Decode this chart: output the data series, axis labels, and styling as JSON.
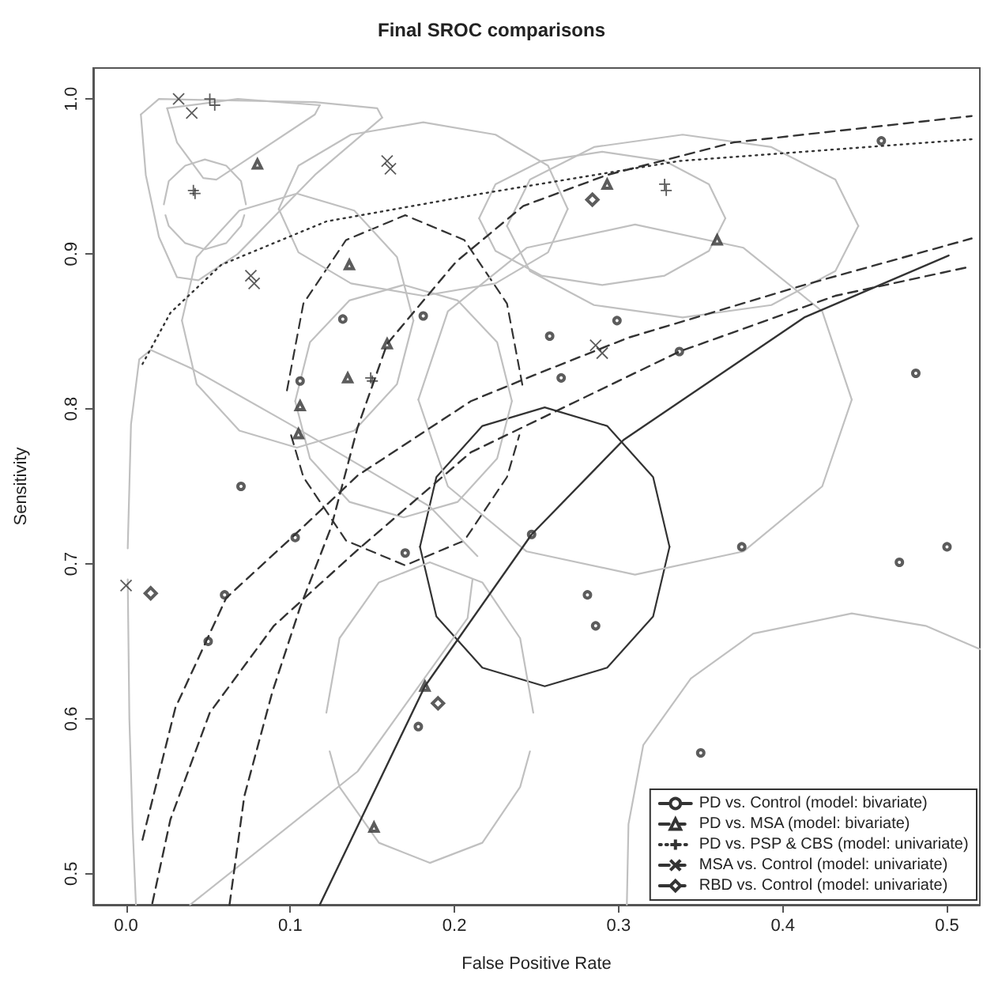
{
  "chart_data": {
    "type": "line",
    "title": "Final SROC comparisons",
    "xlabel": "False Positive Rate",
    "ylabel": "Sensitivity",
    "xlim": [
      -0.02,
      0.52
    ],
    "ylim": [
      0.48,
      1.02
    ],
    "xticks": [
      {
        "value": 0,
        "label": "0.0"
      },
      0.1,
      0.2,
      0.3,
      0.4,
      0.5
    ],
    "yticks": [
      0.5,
      0.6,
      0.7,
      0.8,
      0.9,
      {
        "value": 1,
        "label": "1.0"
      }
    ],
    "grid": false,
    "legend": "bottom right",
    "series": [
      {
        "name": "PD vs. Control (model: bivariate)",
        "color": "#333333",
        "line_style": "solid",
        "x": [
          0.118,
          0.182,
          0.247,
          0.303,
          0.413,
          0.501
        ],
        "values": [
          0.48,
          0.621,
          0.719,
          0.78,
          0.859,
          0.899
        ]
      },
      {
        "name": "PD vs. MSA (model: bivariate)",
        "color": "#333333",
        "line_style": "dashed",
        "x": [
          0.063,
          0.072,
          0.089,
          0.106,
          0.125,
          0.141,
          0.159,
          0.201,
          0.242,
          0.293,
          0.37,
          0.515
        ],
        "values": [
          0.48,
          0.55,
          0.617,
          0.672,
          0.724,
          0.788,
          0.842,
          0.895,
          0.931,
          0.951,
          0.972,
          0.989
        ]
      },
      {
        "name": "PD vs. PSP & CBS (model: univariate)",
        "color": "#333333",
        "line_style": "dotted",
        "x": [
          0.01,
          0.027,
          0.058,
          0.122,
          0.217,
          0.337,
          0.515
        ],
        "values": [
          0.829,
          0.862,
          0.893,
          0.921,
          0.939,
          0.96,
          0.974
        ]
      },
      {
        "name": "MSA vs. Control (model: univariate)",
        "color": "#333333",
        "line_style": "dashed",
        "x": [
          0.01,
          0.03,
          0.061,
          0.103,
          0.141,
          0.21,
          0.249,
          0.306,
          0.413,
          0.515
        ],
        "values": [
          0.522,
          0.607,
          0.678,
          0.719,
          0.757,
          0.805,
          0.822,
          0.846,
          0.88,
          0.91
        ]
      },
      {
        "name": "RBD vs. Control (model: univariate)",
        "color": "#333333",
        "line_style": "dashed",
        "x": [
          0.016,
          0.027,
          0.051,
          0.09,
          0.141,
          0.21,
          0.337,
          0.432,
          0.515
        ],
        "values": [
          0.481,
          0.535,
          0.604,
          0.66,
          0.709,
          0.772,
          0.837,
          0.873,
          0.892
        ]
      },
      {
        "type": "scatter",
        "color": "#333333",
        "marker": "circle",
        "x": [
          0.247,
          0.132,
          0.181,
          0.106,
          0.07,
          0.103,
          0.06,
          0.05,
          0.17,
          0.178,
          0.46,
          0.258,
          0.299,
          0.265,
          0.337,
          0.481,
          0.375,
          0.471,
          0.5,
          0.281,
          0.286,
          0.35
        ],
        "values": [
          0.719,
          0.858,
          0.86,
          0.818,
          0.75,
          0.717,
          0.68,
          0.65,
          0.707,
          0.595,
          0.973,
          0.847,
          0.857,
          0.82,
          0.837,
          0.823,
          0.711,
          0.701,
          0.711,
          0.68,
          0.66,
          0.578
        ]
      },
      {
        "type": "scatter",
        "color": "#333333",
        "marker": "triangle",
        "x": [
          0.159,
          0.08,
          0.136,
          0.135,
          0.106,
          0.105,
          0.293,
          0.36,
          0.182,
          0.151
        ],
        "values": [
          0.842,
          0.958,
          0.893,
          0.82,
          0.802,
          0.784,
          0.945,
          0.909,
          0.621,
          0.53
        ]
      },
      {
        "type": "scatter",
        "color": "#333333",
        "marker": "cross",
        "x": [
          0.054,
          0.051,
          0.042,
          0.041,
          0.15,
          0.149,
          0.329,
          0.328
        ],
        "values": [
          0.996,
          1.0,
          0.939,
          0.941,
          0.818,
          0.82,
          0.941,
          0.945
        ]
      },
      {
        "type": "scatter",
        "color": "#333333",
        "marker": "x",
        "x": [
          0.032,
          0.04,
          0.161,
          0.159,
          0.078,
          0.076,
          0.29,
          0.286,
          0.0
        ],
        "values": [
          1.0,
          0.991,
          0.955,
          0.96,
          0.881,
          0.886,
          0.836,
          0.841,
          0.686
        ]
      },
      {
        "type": "scatter",
        "color": "#333333",
        "marker": "diamond",
        "x": [
          0.015,
          0.19,
          0.284
        ],
        "values": [
          0.681,
          0.61,
          0.935
        ]
      },
      {
        "color": "#333333",
        "line_style": "solid",
        "x": [
          0.179,
          0.189,
          0.217,
          0.255,
          0.293,
          0.321,
          0.331
        ],
        "values": [
          0.711,
          0.756,
          0.789,
          0.801,
          0.789,
          0.756,
          0.711
        ]
      },
      {
        "color": "#333333",
        "line_style": "solid",
        "x": [
          0.179,
          0.189,
          0.217,
          0.255,
          0.293,
          0.321,
          0.331
        ],
        "values": [
          0.711,
          0.666,
          0.633,
          0.621,
          0.633,
          0.666,
          0.711
        ]
      },
      {
        "color": "#333333",
        "line_style": "dashed",
        "x": [
          0.098,
          0.108,
          0.134,
          0.17,
          0.206,
          0.232,
          0.242
        ],
        "values": [
          0.812,
          0.868,
          0.909,
          0.925,
          0.909,
          0.868,
          0.812
        ]
      },
      {
        "color": "#333333",
        "line_style": "dashed",
        "x": [
          0.1005,
          0.108,
          0.134,
          0.17,
          0.206,
          0.232,
          0.2395
        ],
        "values": [
          0.783,
          0.756,
          0.715,
          0.699,
          0.715,
          0.756,
          0.783
        ]
      },
      {
        "color": "#c0c0c0",
        "line_style": "solid",
        "x": [
          0.009,
          0.02,
          0.115,
          0.153,
          0.156
        ],
        "values": [
          0.99,
          1.0,
          0.998,
          0.994,
          0.988
        ]
      },
      {
        "color": "#c0c0c0",
        "line_style": "solid",
        "x": [
          0.009,
          0.012,
          0.02,
          0.031,
          0.044,
          0.068,
          0.115,
          0.156
        ],
        "values": [
          0.99,
          0.951,
          0.911,
          0.885,
          0.883,
          0.9,
          0.951,
          0.988
        ]
      },
      {
        "color": "#c0c0c0",
        "line_style": "solid",
        "x": [
          0.025,
          0.068,
          0.118
        ],
        "values": [
          0.994,
          1.0,
          0.996
        ]
      },
      {
        "color": "#c0c0c0",
        "line_style": "solid",
        "x": [
          0.025,
          0.031,
          0.047,
          0.055,
          0.068,
          0.115,
          0.118
        ],
        "values": [
          0.994,
          0.972,
          0.949,
          0.948,
          0.957,
          0.99,
          0.996
        ]
      },
      {
        "color": "#c0c0c0",
        "line_style": "solid",
        "x": [
          0.023,
          0.026,
          0.036,
          0.048,
          0.061,
          0.07,
          0.073
        ],
        "values": [
          0.932,
          0.947,
          0.957,
          0.961,
          0.957,
          0.947,
          0.932
        ]
      },
      {
        "color": "#c0c0c0",
        "line_style": "solid",
        "x": [
          0.024,
          0.026,
          0.036,
          0.048,
          0.061,
          0.07,
          0.072
        ],
        "values": [
          0.925,
          0.918,
          0.907,
          0.903,
          0.907,
          0.918,
          0.925
        ]
      },
      {
        "color": "#c0c0c0",
        "line_style": "solid",
        "x": [
          0.034,
          0.043,
          0.069,
          0.104,
          0.139,
          0.165,
          0.175
        ],
        "values": [
          0.857,
          0.898,
          0.928,
          0.939,
          0.928,
          0.898,
          0.857
        ]
      },
      {
        "color": "#c0c0c0",
        "line_style": "solid",
        "x": [
          0.034,
          0.043,
          0.069,
          0.104,
          0.139,
          0.165,
          0.175
        ],
        "values": [
          0.857,
          0.816,
          0.786,
          0.775,
          0.786,
          0.816,
          0.857
        ]
      },
      {
        "color": "#c0c0c0",
        "line_style": "solid",
        "x": [
          0.093,
          0.105,
          0.137,
          0.181,
          0.225,
          0.257,
          0.269
        ],
        "values": [
          0.929,
          0.957,
          0.977,
          0.985,
          0.977,
          0.957,
          0.929
        ]
      },
      {
        "color": "#c0c0c0",
        "line_style": "solid",
        "x": [
          0.093,
          0.105,
          0.137,
          0.181,
          0.225,
          0.257,
          0.269
        ],
        "values": [
          0.929,
          0.901,
          0.881,
          0.873,
          0.881,
          0.901,
          0.929
        ]
      },
      {
        "color": "#c0c0c0",
        "line_style": "solid",
        "x": [
          0.215,
          0.225,
          0.253,
          0.29,
          0.328,
          0.355,
          0.365
        ],
        "values": [
          0.923,
          0.945,
          0.96,
          0.966,
          0.96,
          0.945,
          0.923
        ]
      },
      {
        "color": "#c0c0c0",
        "line_style": "solid",
        "x": [
          0.215,
          0.225,
          0.253,
          0.29,
          0.328,
          0.355,
          0.365
        ],
        "values": [
          0.923,
          0.902,
          0.886,
          0.88,
          0.886,
          0.902,
          0.923
        ]
      },
      {
        "color": "#c0c0c0",
        "line_style": "solid",
        "x": [
          0.232,
          0.246,
          0.285,
          0.339,
          0.393,
          0.432,
          0.446
        ],
        "values": [
          0.918,
          0.948,
          0.969,
          0.977,
          0.969,
          0.948,
          0.918
        ]
      },
      {
        "color": "#c0c0c0",
        "line_style": "solid",
        "x": [
          0.232,
          0.246,
          0.285,
          0.339,
          0.393,
          0.432,
          0.446
        ],
        "values": [
          0.918,
          0.889,
          0.867,
          0.859,
          0.867,
          0.889,
          0.918
        ]
      },
      {
        "color": "#c0c0c0",
        "line_style": "solid",
        "x": [
          0.178,
          0.196,
          0.244,
          0.31,
          0.376,
          0.424,
          0.442
        ],
        "values": [
          0.806,
          0.863,
          0.904,
          0.919,
          0.904,
          0.863,
          0.806
        ]
      },
      {
        "color": "#c0c0c0",
        "line_style": "solid",
        "x": [
          0.178,
          0.196,
          0.244,
          0.31,
          0.376,
          0.424,
          0.442
        ],
        "values": [
          0.806,
          0.75,
          0.708,
          0.693,
          0.708,
          0.75,
          0.806
        ]
      },
      {
        "color": "#c0c0c0",
        "line_style": "solid",
        "x": [
          0.103,
          0.112,
          0.136,
          0.169,
          0.202,
          0.226,
          0.235
        ],
        "values": [
          0.805,
          0.843,
          0.87,
          0.88,
          0.87,
          0.843,
          0.805
        ]
      },
      {
        "color": "#c0c0c0",
        "line_style": "solid",
        "x": [
          0.103,
          0.112,
          0.136,
          0.169,
          0.202,
          0.226,
          0.235
        ],
        "values": [
          0.805,
          0.768,
          0.74,
          0.73,
          0.74,
          0.768,
          0.805
        ]
      },
      {
        "color": "#c0c0c0",
        "line_style": "solid",
        "x": [
          0.122,
          0.13,
          0.154,
          0.185,
          0.217,
          0.24,
          0.248
        ],
        "values": [
          0.604,
          0.652,
          0.688,
          0.701,
          0.688,
          0.652,
          0.604
        ]
      },
      {
        "color": "#c0c0c0",
        "line_style": "solid",
        "x": [
          0.124,
          0.13,
          0.154,
          0.185,
          0.217,
          0.24,
          0.246
        ],
        "values": [
          0.579,
          0.556,
          0.52,
          0.507,
          0.52,
          0.556,
          0.579
        ]
      },
      {
        "color": "#c0c0c0",
        "line_style": "solid",
        "x": [
          0.001,
          0.002,
          0.004,
          0.006
        ],
        "values": [
          0.69,
          0.6,
          0.53,
          0.48
        ]
      },
      {
        "color": "#c0c0c0",
        "line_style": "solid",
        "x": [
          0.001,
          0.003,
          0.008,
          0.015,
          0.04,
          0.1,
          0.185,
          0.214
        ],
        "values": [
          0.71,
          0.79,
          0.832,
          0.838,
          0.826,
          0.79,
          0.737,
          0.705
        ]
      },
      {
        "color": "#c0c0c0",
        "line_style": "solid",
        "x": [
          0.039,
          0.141,
          0.208,
          0.211
        ],
        "values": [
          0.48,
          0.566,
          0.665,
          0.69
        ]
      },
      {
        "color": "#c0c0c0",
        "line_style": "solid",
        "x": [
          0.305,
          0.306,
          0.315,
          0.344,
          0.382,
          0.442,
          0.487,
          0.52
        ],
        "values": [
          0.48,
          0.532,
          0.583,
          0.626,
          0.655,
          0.668,
          0.66,
          0.645
        ]
      }
    ]
  }
}
